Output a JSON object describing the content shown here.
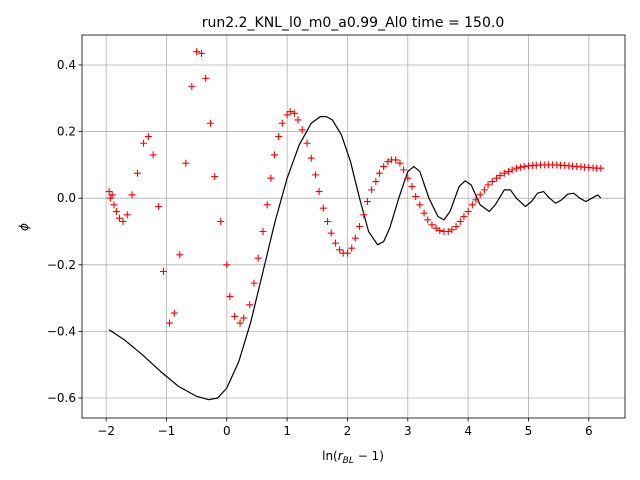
{
  "chart_data": {
    "type": "line",
    "title": "run2.2_KNL_l0_m0_a0.99_Al0 time = 150.0",
    "xlabel": "ln(r_BL − 1)",
    "xlabel_base": "ln(",
    "xlabel_sub_main": "r",
    "xlabel_sub": "BL",
    "xlabel_tail": " − 1)",
    "ylabel": "ϕ",
    "xlim": [
      -2.4,
      6.6
    ],
    "ylim": [
      -0.66,
      0.49
    ],
    "xticks": [
      -2,
      -1,
      0,
      1,
      2,
      3,
      4,
      5,
      6
    ],
    "yticks": [
      -0.6,
      -0.4,
      -0.2,
      0.0,
      0.2,
      0.4
    ],
    "xtick_labels": [
      "−2",
      "−1",
      "0",
      "1",
      "2",
      "3",
      "4",
      "5",
      "6"
    ],
    "ytick_labels": [
      "−0.6",
      "−0.4",
      "−0.2",
      "0.0",
      "0.2",
      "0.4"
    ],
    "grid": true,
    "legend": "none",
    "colors": {
      "line": "#000000",
      "markers": "#ff0000"
    },
    "series": [
      {
        "style": "line",
        "color": "#000000",
        "points": [
          [
            -1.95,
            -0.395
          ],
          [
            -1.7,
            -0.425
          ],
          [
            -1.4,
            -0.47
          ],
          [
            -1.1,
            -0.52
          ],
          [
            -0.8,
            -0.565
          ],
          [
            -0.5,
            -0.595
          ],
          [
            -0.3,
            -0.605
          ],
          [
            -0.15,
            -0.6
          ],
          [
            0.0,
            -0.57
          ],
          [
            0.2,
            -0.49
          ],
          [
            0.4,
            -0.37
          ],
          [
            0.6,
            -0.22
          ],
          [
            0.8,
            -0.07
          ],
          [
            1.0,
            0.06
          ],
          [
            1.2,
            0.16
          ],
          [
            1.4,
            0.225
          ],
          [
            1.55,
            0.245
          ],
          [
            1.65,
            0.245
          ],
          [
            1.75,
            0.235
          ],
          [
            1.9,
            0.19
          ],
          [
            2.05,
            0.11
          ],
          [
            2.2,
            0.0
          ],
          [
            2.35,
            -0.1
          ],
          [
            2.5,
            -0.14
          ],
          [
            2.6,
            -0.13
          ],
          [
            2.7,
            -0.09
          ],
          [
            2.85,
            0.0
          ],
          [
            3.0,
            0.08
          ],
          [
            3.1,
            0.095
          ],
          [
            3.2,
            0.08
          ],
          [
            3.35,
            0.0
          ],
          [
            3.5,
            -0.055
          ],
          [
            3.6,
            -0.065
          ],
          [
            3.7,
            -0.04
          ],
          [
            3.85,
            0.035
          ],
          [
            3.95,
            0.052
          ],
          [
            4.05,
            0.04
          ],
          [
            4.2,
            -0.02
          ],
          [
            4.35,
            -0.04
          ],
          [
            4.45,
            -0.02
          ],
          [
            4.6,
            0.025
          ],
          [
            4.7,
            0.025
          ],
          [
            4.8,
            0.0
          ],
          [
            4.95,
            -0.025
          ],
          [
            5.05,
            -0.01
          ],
          [
            5.15,
            0.015
          ],
          [
            5.25,
            0.02
          ],
          [
            5.35,
            0.0
          ],
          [
            5.45,
            -0.015
          ],
          [
            5.55,
            -0.005
          ],
          [
            5.65,
            0.012
          ],
          [
            5.75,
            0.015
          ],
          [
            5.85,
            0.0
          ],
          [
            5.95,
            -0.01
          ],
          [
            6.05,
            0.0
          ],
          [
            6.15,
            0.01
          ],
          [
            6.2,
            0.0
          ]
        ]
      },
      {
        "style": "marker",
        "marker": "+",
        "color": "#ff0000",
        "points": [
          [
            -1.95,
            0.02
          ],
          [
            -1.93,
            0.0
          ],
          [
            -1.9,
            0.01
          ],
          [
            -1.87,
            -0.02
          ],
          [
            -1.83,
            -0.04
          ],
          [
            -1.78,
            -0.06
          ],
          [
            -1.72,
            -0.07
          ],
          [
            -1.65,
            -0.05
          ],
          [
            -1.57,
            0.01
          ],
          [
            -1.48,
            0.075
          ],
          [
            -1.38,
            0.165
          ],
          [
            -1.3,
            0.185
          ],
          [
            -1.22,
            0.13
          ],
          [
            -1.13,
            -0.025
          ],
          [
            -1.05,
            -0.22
          ],
          [
            -0.95,
            -0.375
          ],
          [
            -0.87,
            -0.345
          ],
          [
            -0.78,
            -0.17
          ],
          [
            -0.68,
            0.105
          ],
          [
            -0.58,
            0.335
          ],
          [
            -0.5,
            0.44
          ],
          [
            -0.42,
            0.435
          ],
          [
            -0.35,
            0.36
          ],
          [
            -0.27,
            0.225
          ],
          [
            -0.2,
            0.065
          ],
          [
            -0.1,
            -0.07
          ],
          [
            0.0,
            -0.2
          ],
          [
            0.05,
            -0.295
          ],
          [
            0.13,
            -0.355
          ],
          [
            0.22,
            -0.375
          ],
          [
            0.28,
            -0.36
          ],
          [
            0.38,
            -0.32
          ],
          [
            0.45,
            -0.255
          ],
          [
            0.52,
            -0.18
          ],
          [
            0.6,
            -0.1
          ],
          [
            0.67,
            -0.02
          ],
          [
            0.73,
            0.06
          ],
          [
            0.79,
            0.13
          ],
          [
            0.86,
            0.185
          ],
          [
            0.92,
            0.225
          ],
          [
            1.0,
            0.25
          ],
          [
            1.05,
            0.26
          ],
          [
            1.12,
            0.255
          ],
          [
            1.18,
            0.235
          ],
          [
            1.25,
            0.205
          ],
          [
            1.33,
            0.165
          ],
          [
            1.4,
            0.12
          ],
          [
            1.47,
            0.07
          ],
          [
            1.53,
            0.02
          ],
          [
            1.6,
            -0.03
          ],
          [
            1.67,
            -0.07
          ],
          [
            1.73,
            -0.105
          ],
          [
            1.8,
            -0.135
          ],
          [
            1.87,
            -0.155
          ],
          [
            1.93,
            -0.165
          ],
          [
            2.0,
            -0.165
          ],
          [
            2.07,
            -0.15
          ],
          [
            2.13,
            -0.12
          ],
          [
            2.2,
            -0.085
          ],
          [
            2.27,
            -0.05
          ],
          [
            2.33,
            -0.01
          ],
          [
            2.4,
            0.025
          ],
          [
            2.47,
            0.05
          ],
          [
            2.53,
            0.075
          ],
          [
            2.6,
            0.095
          ],
          [
            2.67,
            0.11
          ],
          [
            2.73,
            0.115
          ],
          [
            2.8,
            0.115
          ],
          [
            2.87,
            0.105
          ],
          [
            2.93,
            0.085
          ],
          [
            3.0,
            0.06
          ],
          [
            3.07,
            0.035
          ],
          [
            3.13,
            0.005
          ],
          [
            3.2,
            -0.02
          ],
          [
            3.27,
            -0.045
          ],
          [
            3.33,
            -0.065
          ],
          [
            3.4,
            -0.08
          ],
          [
            3.47,
            -0.09
          ],
          [
            3.53,
            -0.097
          ],
          [
            3.6,
            -0.1
          ],
          [
            3.67,
            -0.1
          ],
          [
            3.73,
            -0.095
          ],
          [
            3.8,
            -0.085
          ],
          [
            3.87,
            -0.07
          ],
          [
            3.93,
            -0.055
          ],
          [
            4.0,
            -0.04
          ],
          [
            4.07,
            -0.02
          ],
          [
            4.13,
            -0.005
          ],
          [
            4.2,
            0.01
          ],
          [
            4.27,
            0.025
          ],
          [
            4.33,
            0.04
          ],
          [
            4.4,
            0.05
          ],
          [
            4.47,
            0.06
          ],
          [
            4.53,
            0.068
          ],
          [
            4.6,
            0.075
          ],
          [
            4.67,
            0.08
          ],
          [
            4.73,
            0.085
          ],
          [
            4.8,
            0.09
          ],
          [
            4.87,
            0.093
          ],
          [
            4.93,
            0.095
          ],
          [
            5.0,
            0.097
          ],
          [
            5.07,
            0.098
          ],
          [
            5.13,
            0.099
          ],
          [
            5.2,
            0.1
          ],
          [
            5.27,
            0.1
          ],
          [
            5.33,
            0.1
          ],
          [
            5.4,
            0.1
          ],
          [
            5.47,
            0.1
          ],
          [
            5.53,
            0.099
          ],
          [
            5.6,
            0.098
          ],
          [
            5.67,
            0.097
          ],
          [
            5.73,
            0.096
          ],
          [
            5.8,
            0.095
          ],
          [
            5.87,
            0.094
          ],
          [
            5.93,
            0.093
          ],
          [
            6.0,
            0.092
          ],
          [
            6.07,
            0.091
          ],
          [
            6.13,
            0.09
          ],
          [
            6.2,
            0.09
          ]
        ]
      }
    ]
  }
}
